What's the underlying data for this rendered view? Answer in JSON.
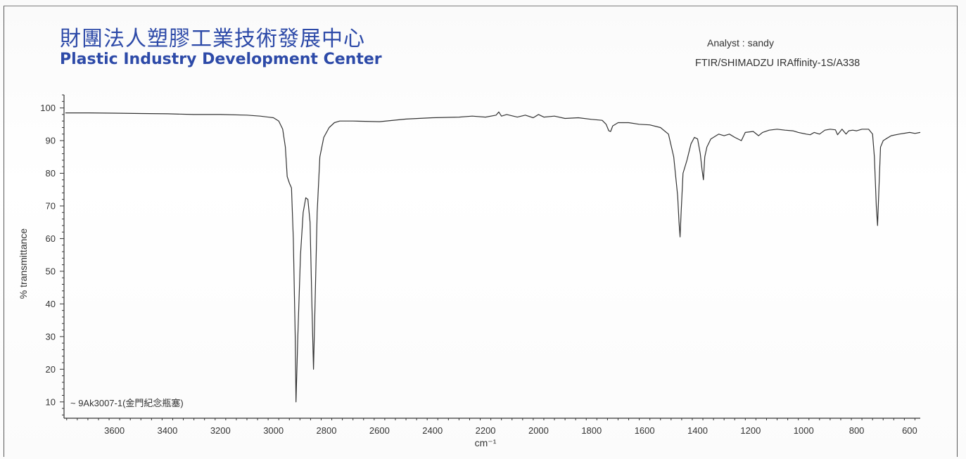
{
  "header": {
    "org_name_cn": "財團法人塑膠工業技術發展中心",
    "org_name_en": "Plastic Industry Development Center",
    "analyst": "Analyst : sandy",
    "instrument": "FTIR/SHIMADZU IRAffinity-1S/A338"
  },
  "colors": {
    "brand": "#2d4aa8",
    "spectrum": "#333333"
  },
  "chart_data": {
    "type": "line",
    "xlabel": "cm⁻¹",
    "ylabel": "% transmittance",
    "xlim": [
      3790,
      560
    ],
    "ylim": [
      5,
      104
    ],
    "x_reversed": true,
    "grid": false,
    "x_ticks": [
      3600,
      3400,
      3200,
      3000,
      2800,
      2600,
      2400,
      2200,
      2000,
      1800,
      1600,
      1400,
      1200,
      1000,
      800,
      600
    ],
    "y_ticks": [
      10,
      20,
      30,
      40,
      50,
      60,
      70,
      80,
      90,
      100
    ],
    "legend": "top-left of lower area",
    "series": [
      {
        "name": "~ 9Ak3007-1(金門紀念瓶塞)",
        "points": [
          [
            3785,
            98.5
          ],
          [
            3700,
            98.5
          ],
          [
            3600,
            98.4
          ],
          [
            3500,
            98.3
          ],
          [
            3400,
            98.2
          ],
          [
            3300,
            98.0
          ],
          [
            3200,
            98.0
          ],
          [
            3100,
            97.8
          ],
          [
            3050,
            97.5
          ],
          [
            3000,
            97.0
          ],
          [
            2980,
            96.0
          ],
          [
            2965,
            93.5
          ],
          [
            2955,
            88.0
          ],
          [
            2948,
            79.0
          ],
          [
            2940,
            77.0
          ],
          [
            2932,
            75.5
          ],
          [
            2925,
            60.0
          ],
          [
            2918,
            30.0
          ],
          [
            2915,
            10.0
          ],
          [
            2908,
            30.0
          ],
          [
            2898,
            55.0
          ],
          [
            2888,
            68.0
          ],
          [
            2878,
            72.5
          ],
          [
            2870,
            72.0
          ],
          [
            2862,
            65.0
          ],
          [
            2855,
            40.0
          ],
          [
            2849,
            20.0
          ],
          [
            2843,
            40.0
          ],
          [
            2835,
            68.0
          ],
          [
            2825,
            85.0
          ],
          [
            2810,
            91.0
          ],
          [
            2790,
            94.0
          ],
          [
            2770,
            95.5
          ],
          [
            2750,
            96.0
          ],
          [
            2700,
            96.0
          ],
          [
            2600,
            95.8
          ],
          [
            2500,
            96.6
          ],
          [
            2400,
            97.0
          ],
          [
            2300,
            97.2
          ],
          [
            2250,
            97.5
          ],
          [
            2200,
            97.2
          ],
          [
            2160,
            97.8
          ],
          [
            2150,
            98.8
          ],
          [
            2140,
            97.5
          ],
          [
            2120,
            98.0
          ],
          [
            2080,
            97.2
          ],
          [
            2050,
            97.8
          ],
          [
            2020,
            97.0
          ],
          [
            2000,
            98.0
          ],
          [
            1980,
            97.2
          ],
          [
            1940,
            97.5
          ],
          [
            1900,
            96.8
          ],
          [
            1850,
            97.0
          ],
          [
            1800,
            96.5
          ],
          [
            1760,
            96.2
          ],
          [
            1745,
            95.0
          ],
          [
            1735,
            93.0
          ],
          [
            1728,
            92.8
          ],
          [
            1720,
            94.5
          ],
          [
            1700,
            95.5
          ],
          [
            1660,
            95.5
          ],
          [
            1620,
            95.0
          ],
          [
            1580,
            94.8
          ],
          [
            1540,
            94.0
          ],
          [
            1510,
            92.0
          ],
          [
            1490,
            85.0
          ],
          [
            1475,
            73.0
          ],
          [
            1470,
            65.0
          ],
          [
            1466,
            60.5
          ],
          [
            1462,
            68.0
          ],
          [
            1455,
            80.0
          ],
          [
            1440,
            84.0
          ],
          [
            1425,
            89.0
          ],
          [
            1412,
            91.0
          ],
          [
            1400,
            90.5
          ],
          [
            1390,
            86.0
          ],
          [
            1383,
            81.0
          ],
          [
            1378,
            78.0
          ],
          [
            1373,
            85.0
          ],
          [
            1365,
            88.0
          ],
          [
            1350,
            90.5
          ],
          [
            1320,
            92.0
          ],
          [
            1300,
            91.5
          ],
          [
            1280,
            92.0
          ],
          [
            1260,
            91.0
          ],
          [
            1235,
            90.0
          ],
          [
            1220,
            92.5
          ],
          [
            1190,
            92.8
          ],
          [
            1170,
            91.5
          ],
          [
            1155,
            92.5
          ],
          [
            1130,
            93.2
          ],
          [
            1100,
            93.5
          ],
          [
            1070,
            93.2
          ],
          [
            1040,
            93.0
          ],
          [
            1020,
            92.5
          ],
          [
            990,
            92.0
          ],
          [
            975,
            91.8
          ],
          [
            960,
            92.5
          ],
          [
            940,
            92.0
          ],
          [
            920,
            93.2
          ],
          [
            900,
            93.5
          ],
          [
            880,
            93.3
          ],
          [
            872,
            91.8
          ],
          [
            865,
            92.5
          ],
          [
            855,
            93.5
          ],
          [
            840,
            92.0
          ],
          [
            830,
            93.0
          ],
          [
            815,
            93.2
          ],
          [
            800,
            93.0
          ],
          [
            780,
            93.5
          ],
          [
            755,
            93.5
          ],
          [
            740,
            92.0
          ],
          [
            733,
            85.0
          ],
          [
            726,
            70.0
          ],
          [
            721,
            64.0
          ],
          [
            716,
            75.0
          ],
          [
            710,
            88.0
          ],
          [
            700,
            90.0
          ],
          [
            690,
            90.5
          ],
          [
            670,
            91.5
          ],
          [
            640,
            92.0
          ],
          [
            600,
            92.5
          ],
          [
            580,
            92.2
          ],
          [
            560,
            92.5
          ]
        ]
      }
    ]
  }
}
